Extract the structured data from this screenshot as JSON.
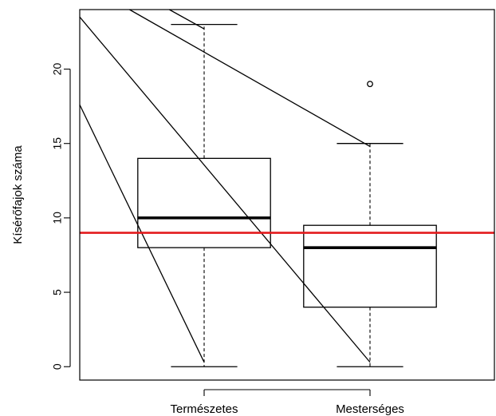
{
  "chart_data": {
    "type": "box",
    "title": "",
    "xlabel": "",
    "ylabel": "Kísérőfajok száma",
    "categories": [
      "Természetes",
      "Mesterséges"
    ],
    "ylim": [
      -0.9,
      24.0
    ],
    "yticks": [
      0,
      5,
      10,
      15,
      20
    ],
    "grid": false,
    "boxes": [
      {
        "category": "Természetes",
        "whisker_low": 0,
        "q1": 8,
        "median": 10,
        "q3": 14,
        "whisker_high": 23,
        "outliers": []
      },
      {
        "category": "Mesterséges",
        "whisker_low": 0,
        "q1": 4,
        "median": 8,
        "q3": 9.5,
        "whisker_high": 15,
        "outliers": [
          19
        ]
      }
    ],
    "reference_line": {
      "y": 9,
      "color": "#e31a1c"
    },
    "overlay_lines": [
      {
        "x": [
          0.25,
          1.0
        ],
        "y": [
          17.6,
          0.3
        ]
      },
      {
        "x": [
          0.25,
          2.0
        ],
        "y": [
          23.5,
          0.3
        ]
      },
      {
        "x": [
          0.55,
          2.0
        ],
        "y": [
          24.0,
          14.8
        ]
      },
      {
        "x": [
          0.79,
          1.0
        ],
        "y": [
          24.0,
          22.7
        ]
      }
    ]
  }
}
